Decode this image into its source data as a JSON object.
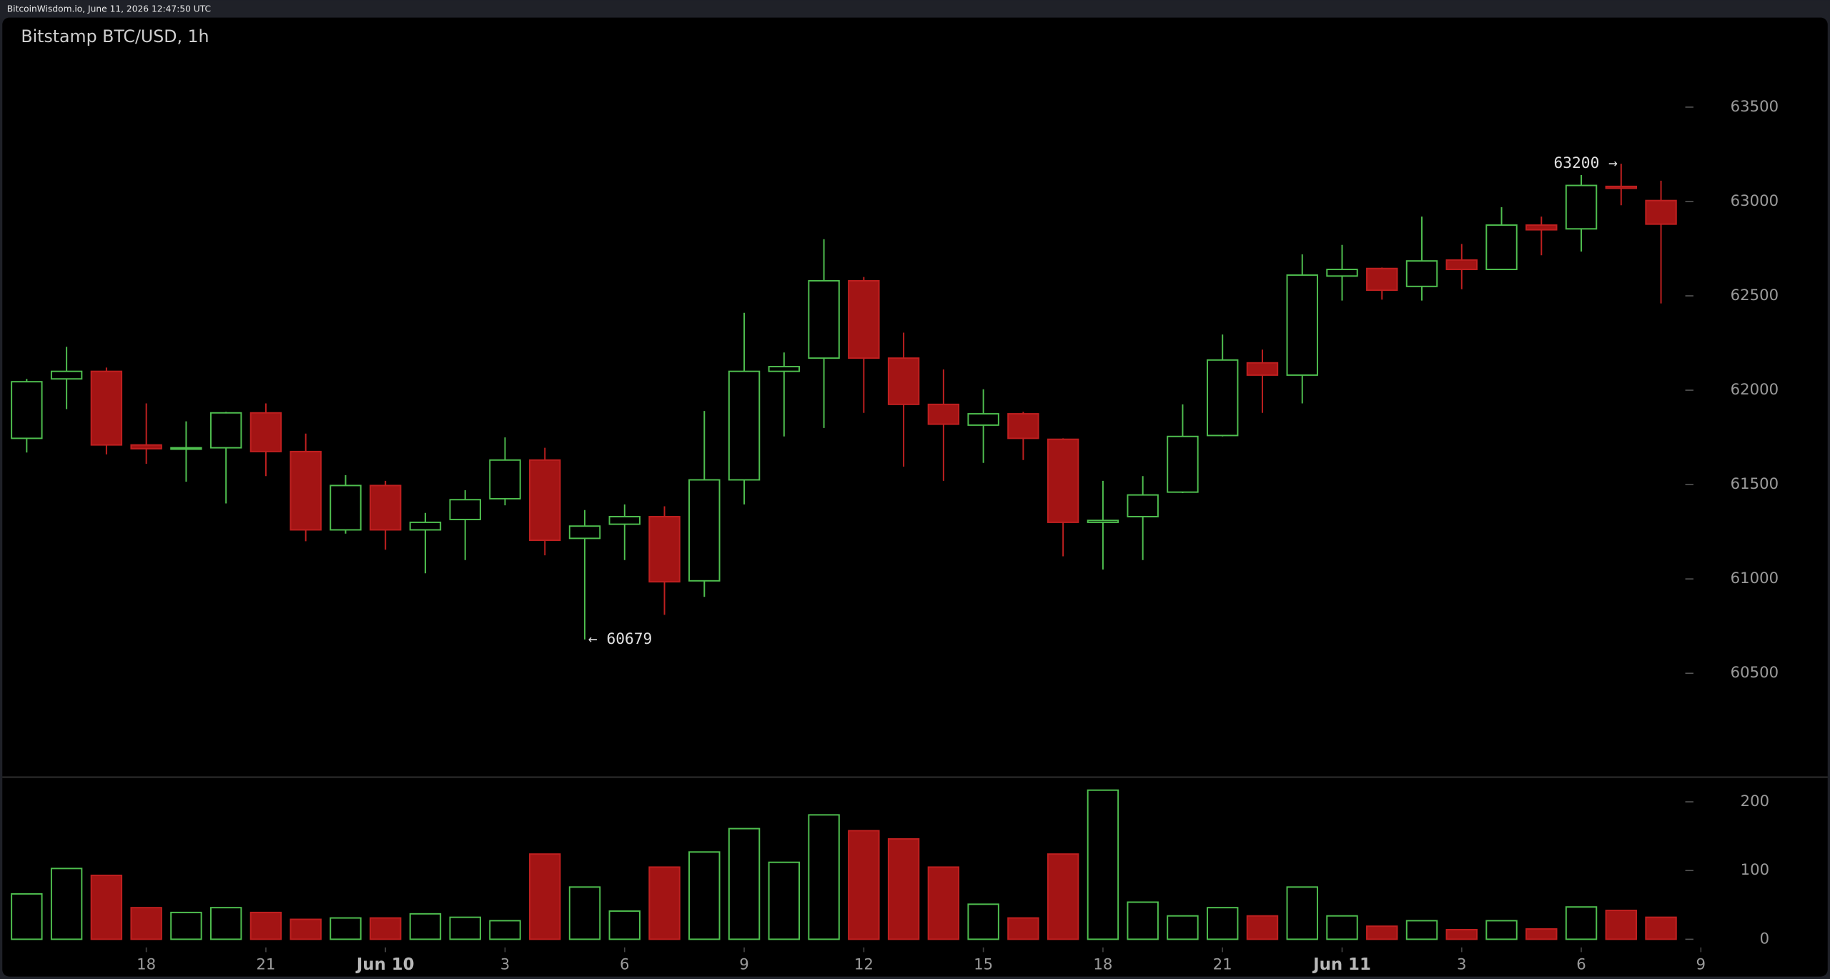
{
  "header": {
    "text": "BitcoinWisdom.io, June 11, 2026 12:47:50 UTC"
  },
  "chart_data": [
    {
      "type": "candlestick",
      "title": "Bitstamp BTC/USD, 1h",
      "up_color": "#4fbf4f",
      "down_color": "#a31414",
      "open": [
        61745,
        62060,
        62100,
        61710,
        61690,
        61695,
        61880,
        61675,
        61260,
        61495,
        61260,
        61315,
        61425,
        61630,
        61215,
        61290,
        61330,
        60990,
        61525,
        62100,
        62170,
        62580,
        62170,
        61925,
        61815,
        61875,
        61740,
        61300,
        61330,
        61460,
        61760,
        62145,
        62080,
        62605,
        62645,
        62550,
        62690,
        62640,
        62875,
        62855,
        63080,
        63005
      ],
      "high": [
        62060,
        62230,
        62120,
        61930,
        61835,
        61885,
        61930,
        61770,
        61550,
        61520,
        61350,
        61470,
        61750,
        61695,
        61365,
        61395,
        61385,
        61890,
        62410,
        62200,
        62800,
        62600,
        62305,
        62110,
        62005,
        61885,
        61745,
        61520,
        61545,
        61925,
        62295,
        62215,
        62720,
        62770,
        62650,
        62920,
        62775,
        62970,
        62920,
        63140,
        63200,
        63110
      ],
      "low": [
        61670,
        61900,
        61660,
        61610,
        61515,
        61400,
        61545,
        61200,
        61240,
        61155,
        61030,
        61100,
        61390,
        61125,
        60679,
        61100,
        60810,
        60905,
        61395,
        61755,
        61800,
        61880,
        61595,
        61520,
        61615,
        61630,
        61120,
        61050,
        61100,
        61455,
        61755,
        61880,
        61930,
        62475,
        62480,
        62475,
        62535,
        62640,
        62715,
        62735,
        62980,
        62460
      ],
      "close": [
        62045,
        62100,
        61710,
        61690,
        61695,
        61880,
        61675,
        61260,
        61495,
        61260,
        61300,
        61420,
        61630,
        61205,
        61280,
        61330,
        60985,
        61525,
        62100,
        62125,
        62580,
        62170,
        61925,
        61820,
        61875,
        61745,
        61300,
        61310,
        61445,
        61755,
        62160,
        62080,
        62610,
        62640,
        62530,
        62685,
        62640,
        62875,
        62850,
        63085,
        63070,
        62880
      ],
      "ylim": [
        59950,
        63820
      ],
      "yticks": [
        60500,
        61000,
        61500,
        62000,
        62500,
        63000,
        63500
      ],
      "xlim": [
        -0.67,
        45.24
      ],
      "xticks": [
        {
          "value": 3,
          "label": "18"
        },
        {
          "value": 6,
          "label": "21"
        },
        {
          "value": 9,
          "label": "Jun 10"
        },
        {
          "value": 12,
          "label": "3"
        },
        {
          "value": 15,
          "label": "6"
        },
        {
          "value": 18,
          "label": "9"
        },
        {
          "value": 21,
          "label": "12"
        },
        {
          "value": 24,
          "label": "15"
        },
        {
          "value": 27,
          "label": "18"
        },
        {
          "value": 30,
          "label": "21"
        },
        {
          "value": 33,
          "label": "Jun 11"
        },
        {
          "value": 36,
          "label": "3"
        },
        {
          "value": 39,
          "label": "6"
        },
        {
          "value": 42,
          "label": "9"
        }
      ],
      "annotations": [
        {
          "label": "← 60679",
          "value": 60679
        },
        {
          "label": "63200 →",
          "value": 63200
        }
      ]
    },
    {
      "type": "bar",
      "name": "volume",
      "values": [
        66,
        103,
        93,
        46,
        39,
        46,
        39,
        29,
        31,
        31,
        37,
        32,
        27,
        124,
        76,
        41,
        105,
        127,
        161,
        112,
        181,
        158,
        146,
        105,
        51,
        31,
        124,
        217,
        54,
        34,
        46,
        34,
        76,
        34,
        19,
        27,
        14,
        27,
        15,
        47,
        42,
        32
      ],
      "ylim": [
        0,
        236
      ],
      "yticks": [
        0,
        100,
        200
      ]
    }
  ]
}
